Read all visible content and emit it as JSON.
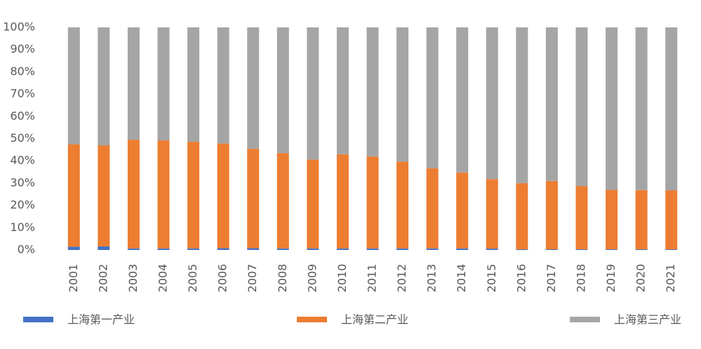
{
  "chart_data": {
    "type": "stacked_bar",
    "categories": [
      "2001",
      "2002",
      "2003",
      "2004",
      "2005",
      "2006",
      "2007",
      "2008",
      "2009",
      "2010",
      "2011",
      "2012",
      "2013",
      "2014",
      "2015",
      "2016",
      "2017",
      "2018",
      "2019",
      "2020",
      "2021"
    ],
    "series": [
      {
        "name": "上海第一产业",
        "color": "#4472c4",
        "values": [
          1.5,
          1.6,
          0.7,
          0.7,
          0.7,
          0.8,
          0.8,
          0.7,
          0.7,
          0.7,
          0.7,
          0.7,
          0.7,
          0.7,
          0.6,
          0.3,
          0.3,
          0.3,
          0.3,
          0.3,
          0.3
        ]
      },
      {
        "name": "上海第二产业",
        "color": "#ed7d31",
        "values": [
          46,
          45.4,
          48.8,
          48.5,
          47.9,
          47,
          44.7,
          42.8,
          39.9,
          42.3,
          41.3,
          39,
          36,
          34.1,
          31.2,
          29.7,
          30.7,
          28.4,
          26.7,
          26.6,
          26.5
        ]
      },
      {
        "name": "上海第三产业",
        "color": "#a5a5a5",
        "values": [
          52.5,
          53,
          50.5,
          50.8,
          51.4,
          52.2,
          54.5,
          56.5,
          59.4,
          57,
          58,
          60.3,
          63.3,
          65.2,
          68.2,
          70,
          69,
          71.3,
          73,
          73.1,
          73.2
        ]
      }
    ],
    "ylim": [
      0,
      100
    ],
    "yticks": [
      {
        "value": 0,
        "label": "0%"
      },
      {
        "value": 10,
        "label": "10%"
      },
      {
        "value": 20,
        "label": "20%"
      },
      {
        "value": 30,
        "label": "30%"
      },
      {
        "value": 40,
        "label": "40%"
      },
      {
        "value": 50,
        "label": "50%"
      },
      {
        "value": 60,
        "label": "60%"
      },
      {
        "value": 70,
        "label": "70%"
      },
      {
        "value": 80,
        "label": "80%"
      },
      {
        "value": 90,
        "label": "90%"
      },
      {
        "value": 100,
        "label": "100%"
      }
    ],
    "legend": "bottom"
  }
}
